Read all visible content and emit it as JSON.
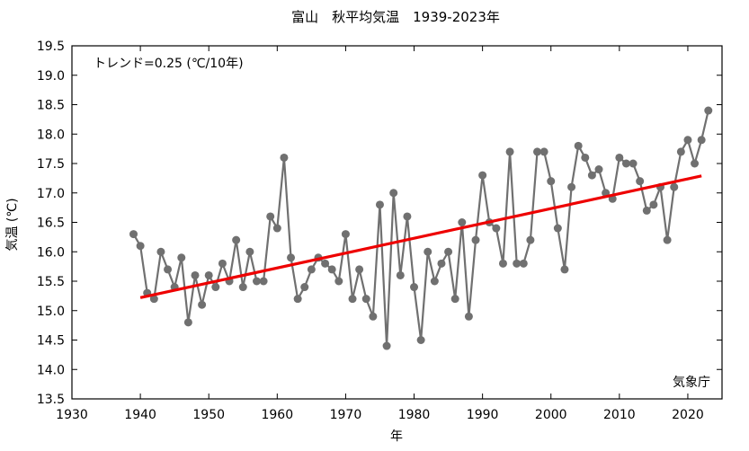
{
  "chart_data": {
    "type": "line",
    "title": "富山　秋平均気温　1939-2023年",
    "xlabel": "年",
    "ylabel": "気温 (℃)",
    "xlim": [
      1930,
      2025
    ],
    "ylim": [
      13.5,
      19.5
    ],
    "xticks": [
      "1930",
      "1940",
      "1950",
      "1960",
      "1970",
      "1980",
      "1990",
      "2000",
      "2010",
      "2020"
    ],
    "yticks": [
      "13.5",
      "14.0",
      "14.5",
      "15.0",
      "15.5",
      "16.0",
      "16.5",
      "17.0",
      "17.5",
      "18.0",
      "18.5",
      "19.0",
      "19.5"
    ],
    "trend_text": "トレンド=0.25 (℃/10年)",
    "source": "気象庁",
    "grid": false,
    "colors": {
      "series": "#707070",
      "trend": "#ee0000",
      "axis": "#000000"
    },
    "series": [
      {
        "x": [
          1939,
          1940,
          1941,
          1942,
          1943,
          1944,
          1945,
          1946,
          1947,
          1948,
          1949,
          1950,
          1951,
          1952,
          1953,
          1954,
          1955,
          1956,
          1957,
          1958,
          1959,
          1960,
          1961,
          1962,
          1963,
          1964,
          1965,
          1966,
          1967,
          1968,
          1969,
          1970,
          1971,
          1972,
          1973,
          1974,
          1975,
          1976,
          1977,
          1978,
          1979,
          1980,
          1981,
          1982,
          1983,
          1984,
          1985,
          1986,
          1987,
          1988,
          1989,
          1990,
          1991,
          1992,
          1993,
          1994,
          1995,
          1996,
          1997,
          1998,
          1999,
          2000,
          2001,
          2002,
          2003,
          2004,
          2005,
          2006,
          2007,
          2008,
          2009,
          2010,
          2011,
          2012,
          2013,
          2014,
          2015,
          2016,
          2017,
          2018,
          2019,
          2020,
          2021,
          2022,
          2023
        ],
        "values": [
          16.3,
          16.1,
          15.3,
          15.2,
          16.0,
          15.7,
          15.4,
          15.9,
          14.8,
          15.6,
          15.1,
          15.6,
          15.4,
          15.8,
          15.5,
          16.2,
          15.4,
          16.0,
          15.5,
          15.5,
          16.6,
          16.4,
          17.6,
          15.9,
          15.2,
          15.4,
          15.7,
          15.9,
          15.8,
          15.7,
          15.5,
          16.3,
          15.2,
          15.7,
          15.2,
          14.9,
          16.8,
          14.4,
          17.0,
          15.6,
          16.6,
          15.4,
          14.5,
          16.0,
          15.5,
          15.8,
          16.0,
          15.2,
          16.5,
          14.9,
          16.2,
          17.3,
          16.5,
          16.4,
          15.8,
          17.7,
          15.8,
          15.8,
          16.2,
          17.7,
          17.7,
          17.2,
          16.4,
          15.7,
          17.1,
          17.8,
          17.6,
          17.3,
          17.4,
          17.0,
          16.9,
          17.6,
          17.5,
          17.5,
          17.2,
          16.7,
          16.8,
          17.1,
          16.2,
          17.1,
          17.7,
          17.9,
          17.5,
          17.9,
          18.4
        ]
      }
    ],
    "trend": {
      "x": [
        1940,
        2022
      ],
      "values": [
        15.22,
        17.29
      ]
    }
  }
}
